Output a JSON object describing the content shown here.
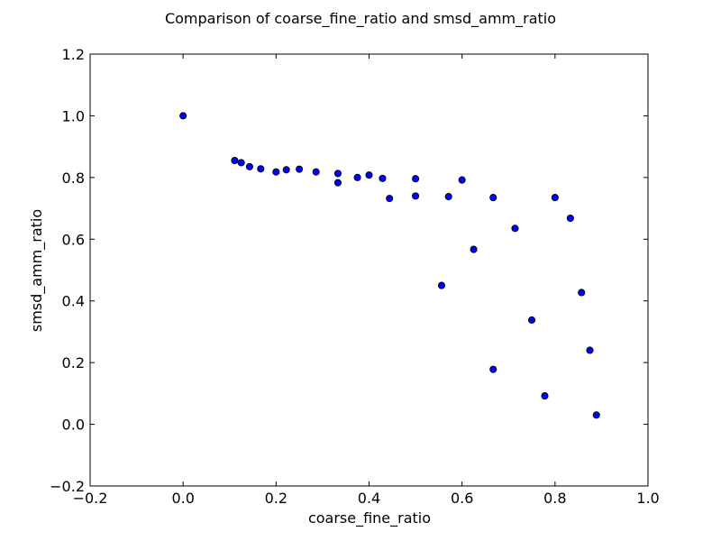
{
  "chart_data": {
    "type": "scatter",
    "title": "Comparison of coarse_fine_ratio and smsd_amm_ratio",
    "xlabel": "coarse_fine_ratio",
    "ylabel": "smsd_amm_ratio",
    "xlim": [
      -0.2,
      1.0
    ],
    "ylim": [
      -0.2,
      1.2
    ],
    "xticks": [
      -0.2,
      0.0,
      0.2,
      0.4,
      0.6,
      0.8,
      1.0
    ],
    "yticks": [
      -0.2,
      0.0,
      0.2,
      0.4,
      0.6,
      0.8,
      1.0,
      1.2
    ],
    "xtick_labels": [
      "−0.2",
      "0.0",
      "0.2",
      "0.4",
      "0.6",
      "0.8",
      "1.0"
    ],
    "ytick_labels": [
      "−0.2",
      "0.0",
      "0.2",
      "0.4",
      "0.6",
      "0.8",
      "1.0",
      "1.2"
    ],
    "grid": false,
    "marker_color": "#0000ff",
    "marker_edge_color": "#000000",
    "points": [
      {
        "x": 0.0,
        "y": 1.0
      },
      {
        "x": 0.111,
        "y": 0.855
      },
      {
        "x": 0.125,
        "y": 0.848
      },
      {
        "x": 0.143,
        "y": 0.835
      },
      {
        "x": 0.167,
        "y": 0.828
      },
      {
        "x": 0.2,
        "y": 0.818
      },
      {
        "x": 0.222,
        "y": 0.825
      },
      {
        "x": 0.25,
        "y": 0.827
      },
      {
        "x": 0.286,
        "y": 0.818
      },
      {
        "x": 0.333,
        "y": 0.813
      },
      {
        "x": 0.333,
        "y": 0.783
      },
      {
        "x": 0.375,
        "y": 0.8
      },
      {
        "x": 0.4,
        "y": 0.808
      },
      {
        "x": 0.429,
        "y": 0.797
      },
      {
        "x": 0.444,
        "y": 0.732
      },
      {
        "x": 0.5,
        "y": 0.796
      },
      {
        "x": 0.5,
        "y": 0.74
      },
      {
        "x": 0.556,
        "y": 0.45
      },
      {
        "x": 0.571,
        "y": 0.738
      },
      {
        "x": 0.6,
        "y": 0.792
      },
      {
        "x": 0.625,
        "y": 0.567
      },
      {
        "x": 0.667,
        "y": 0.735
      },
      {
        "x": 0.667,
        "y": 0.178
      },
      {
        "x": 0.714,
        "y": 0.635
      },
      {
        "x": 0.75,
        "y": 0.338
      },
      {
        "x": 0.778,
        "y": 0.092
      },
      {
        "x": 0.8,
        "y": 0.735
      },
      {
        "x": 0.833,
        "y": 0.668
      },
      {
        "x": 0.857,
        "y": 0.427
      },
      {
        "x": 0.875,
        "y": 0.24
      },
      {
        "x": 0.889,
        "y": 0.03
      }
    ]
  }
}
